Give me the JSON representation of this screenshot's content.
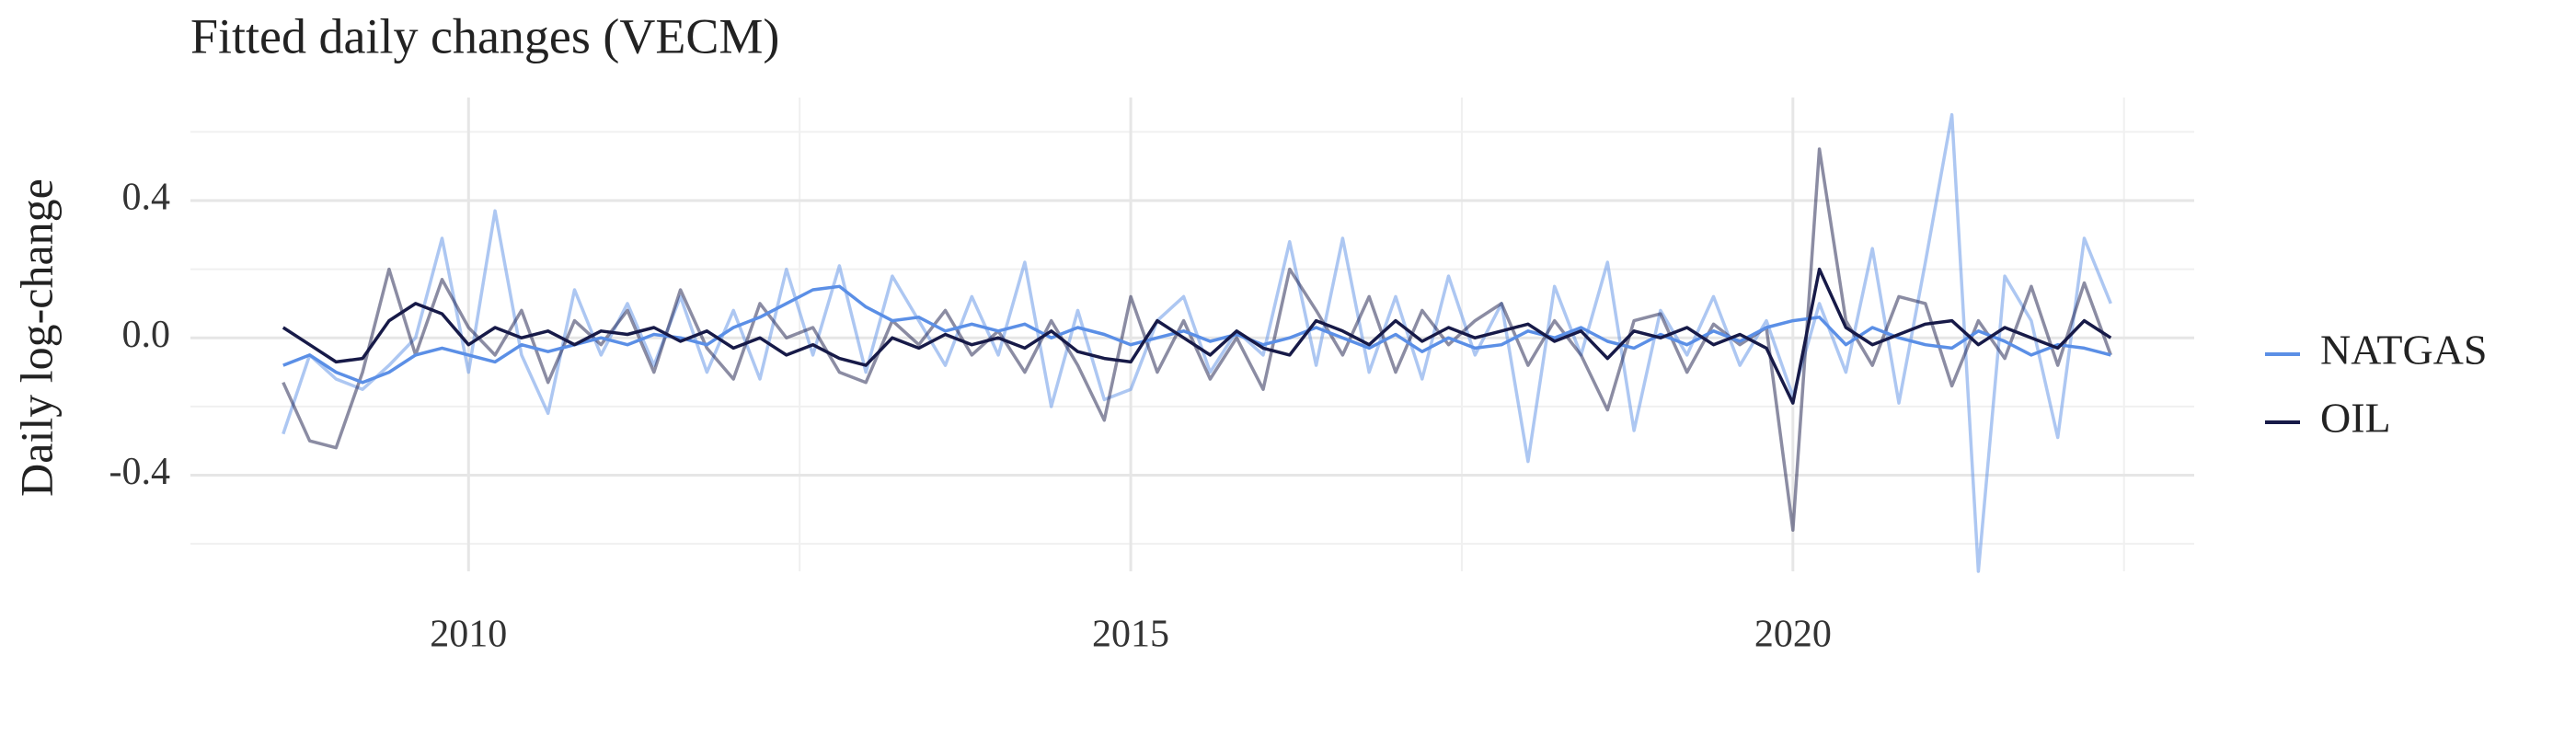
{
  "chart_data": {
    "type": "line",
    "title": "Fitted daily changes (VECM)",
    "y_label": "Daily log-change",
    "x": [
      2008.6,
      2008.8,
      2009.0,
      2009.2,
      2009.4,
      2009.6,
      2009.8,
      2010.0,
      2010.2,
      2010.4,
      2010.6,
      2010.8,
      2011.0,
      2011.2,
      2011.4,
      2011.6,
      2011.8,
      2012.0,
      2012.2,
      2012.4,
      2012.6,
      2012.8,
      2013.0,
      2013.2,
      2013.4,
      2013.6,
      2013.8,
      2014.0,
      2014.2,
      2014.4,
      2014.6,
      2014.8,
      2015.0,
      2015.2,
      2015.4,
      2015.6,
      2015.8,
      2016.0,
      2016.2,
      2016.4,
      2016.6,
      2016.8,
      2017.0,
      2017.2,
      2017.4,
      2017.6,
      2017.8,
      2018.0,
      2018.2,
      2018.4,
      2018.6,
      2018.8,
      2019.0,
      2019.2,
      2019.4,
      2019.6,
      2019.8,
      2020.0,
      2020.2,
      2020.4,
      2020.6,
      2020.8,
      2021.0,
      2021.2,
      2021.4,
      2021.6,
      2021.8,
      2022.0,
      2022.2,
      2022.4
    ],
    "series": [
      {
        "name": "NATGAS",
        "color": "#5b8fe6",
        "values": [
          -0.08,
          -0.05,
          -0.1,
          -0.13,
          -0.1,
          -0.05,
          -0.03,
          -0.05,
          -0.07,
          -0.02,
          -0.04,
          -0.02,
          0.0,
          -0.02,
          0.01,
          0.0,
          -0.02,
          0.03,
          0.06,
          0.1,
          0.14,
          0.15,
          0.09,
          0.05,
          0.06,
          0.02,
          0.04,
          0.02,
          0.04,
          0.0,
          0.03,
          0.01,
          -0.02,
          0.0,
          0.02,
          -0.01,
          0.01,
          -0.02,
          0.0,
          0.03,
          0.0,
          -0.03,
          0.01,
          -0.04,
          0.0,
          -0.03,
          -0.02,
          0.02,
          0.0,
          0.03,
          -0.01,
          -0.03,
          0.01,
          -0.02,
          0.02,
          -0.01,
          0.03,
          0.05,
          0.06,
          -0.02,
          0.03,
          0.0,
          -0.02,
          -0.03,
          0.02,
          -0.01,
          -0.05,
          -0.02,
          -0.03,
          -0.05
        ],
        "observed": [
          -0.28,
          -0.05,
          -0.12,
          -0.15,
          -0.08,
          0.0,
          0.29,
          -0.1,
          0.37,
          -0.05,
          -0.22,
          0.14,
          -0.05,
          0.1,
          -0.08,
          0.12,
          -0.1,
          0.08,
          -0.12,
          0.2,
          -0.05,
          0.21,
          -0.1,
          0.18,
          0.05,
          -0.08,
          0.12,
          -0.05,
          0.22,
          -0.2,
          0.08,
          -0.18,
          -0.15,
          0.05,
          0.12,
          -0.1,
          0.02,
          -0.05,
          0.28,
          -0.08,
          0.29,
          -0.1,
          0.12,
          -0.12,
          0.18,
          -0.05,
          0.1,
          -0.36,
          0.15,
          -0.05,
          0.22,
          -0.27,
          0.08,
          -0.05,
          0.12,
          -0.08,
          0.05,
          -0.17,
          0.1,
          -0.1,
          0.26,
          -0.19,
          0.22,
          0.65,
          -0.68,
          0.18,
          0.05,
          -0.29,
          0.29,
          0.1
        ]
      },
      {
        "name": "OIL",
        "color": "#171a48",
        "values": [
          0.03,
          -0.02,
          -0.07,
          -0.06,
          0.05,
          0.1,
          0.07,
          -0.02,
          0.03,
          0.0,
          0.02,
          -0.02,
          0.02,
          0.01,
          0.03,
          -0.01,
          0.02,
          -0.03,
          0.0,
          -0.05,
          -0.02,
          -0.06,
          -0.08,
          0.0,
          -0.03,
          0.01,
          -0.02,
          0.0,
          -0.03,
          0.02,
          -0.04,
          -0.06,
          -0.07,
          0.05,
          0.0,
          -0.05,
          0.02,
          -0.03,
          -0.05,
          0.05,
          0.02,
          -0.02,
          0.05,
          -0.01,
          0.03,
          0.0,
          0.02,
          0.04,
          -0.01,
          0.02,
          -0.06,
          0.02,
          0.0,
          0.03,
          -0.02,
          0.01,
          -0.03,
          -0.19,
          0.2,
          0.03,
          -0.02,
          0.01,
          0.04,
          0.05,
          -0.02,
          0.03,
          0.0,
          -0.03,
          0.05,
          0.0
        ],
        "observed": [
          -0.13,
          -0.3,
          -0.32,
          -0.1,
          0.2,
          -0.05,
          0.17,
          0.03,
          -0.05,
          0.08,
          -0.13,
          0.05,
          -0.02,
          0.08,
          -0.1,
          0.14,
          -0.03,
          -0.12,
          0.1,
          0.0,
          0.03,
          -0.1,
          -0.13,
          0.05,
          -0.02,
          0.08,
          -0.05,
          0.02,
          -0.1,
          0.05,
          -0.08,
          -0.24,
          0.12,
          -0.1,
          0.05,
          -0.12,
          0.0,
          -0.15,
          0.2,
          0.08,
          -0.05,
          0.12,
          -0.1,
          0.08,
          -0.02,
          0.05,
          0.1,
          -0.08,
          0.05,
          -0.05,
          -0.21,
          0.05,
          0.07,
          -0.1,
          0.04,
          -0.02,
          0.03,
          -0.56,
          0.55,
          0.05,
          -0.08,
          0.12,
          0.1,
          -0.14,
          0.05,
          -0.06,
          0.15,
          -0.08,
          0.16,
          -0.05
        ]
      }
    ],
    "observed_opacity": 0.5,
    "xlim": [
      2007.9,
      2023.03
    ],
    "xticks": [
      2010,
      2015,
      2020
    ],
    "minor_xticks": [
      2012.5,
      2017.5,
      2022.5
    ],
    "ylim": [
      -0.68,
      0.7
    ],
    "yticks": [
      {
        "value": -0.4,
        "label": "-0.4"
      },
      {
        "value": 0,
        "label": "0.0"
      },
      {
        "value": 0.4,
        "label": "0.4"
      }
    ],
    "minor_yticks": [
      -0.6,
      -0.2,
      0.2,
      0.6
    ],
    "grid": true,
    "legend": "right"
  }
}
